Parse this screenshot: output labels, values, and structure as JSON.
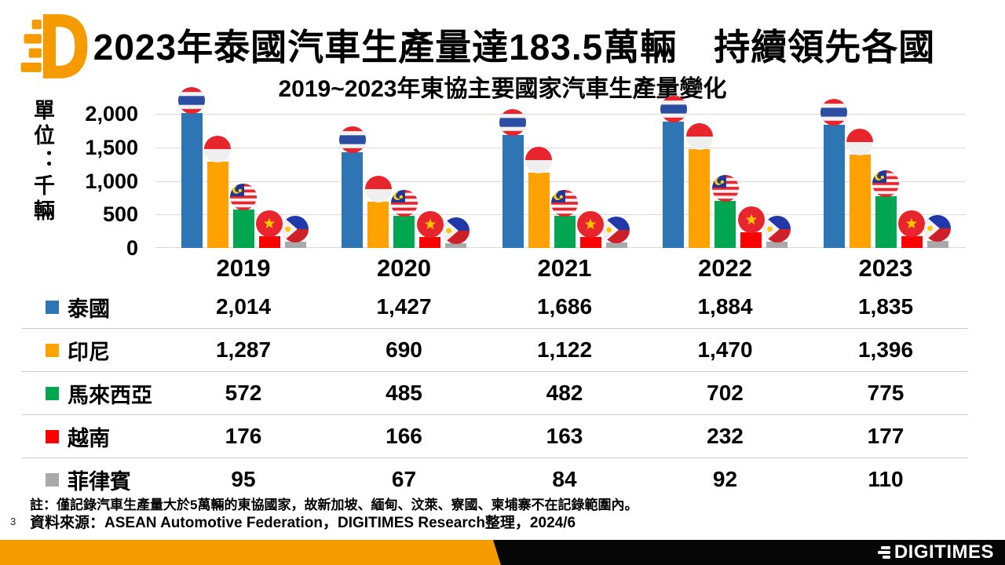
{
  "header": {
    "title": "2023年泰國汽車生產量達183.5萬輛　持續領先各國",
    "subtitle": "2019~2023年東協主要國家汽車生產量變化"
  },
  "chart_data": {
    "type": "bar",
    "title": "2019~2023年東協主要國家汽車生產量變化",
    "unit_label": "單位：千輛",
    "ylabel": "千輛",
    "ylim": [
      0,
      2000
    ],
    "y_ticks": [
      "2,000",
      "1,500",
      "1,000",
      "500",
      "0"
    ],
    "grid": true,
    "legend_position": "table-below-left",
    "categories": [
      "2019",
      "2020",
      "2021",
      "2022",
      "2023"
    ],
    "series": [
      {
        "name": "泰國",
        "flag": "thailand-flag",
        "color": "#2E75B6",
        "values": [
          2014,
          1427,
          1686,
          1884,
          1835
        ]
      },
      {
        "name": "印尼",
        "flag": "indonesia-flag",
        "color": "#FFA200",
        "values": [
          1287,
          690,
          1122,
          1470,
          1396
        ]
      },
      {
        "name": "馬來西亞",
        "flag": "malaysia-flag",
        "color": "#00A650",
        "values": [
          572,
          485,
          482,
          702,
          775
        ]
      },
      {
        "name": "越南",
        "flag": "vietnam-flag",
        "color": "#FF0000",
        "values": [
          176,
          166,
          163,
          232,
          177
        ]
      },
      {
        "name": "菲律賓",
        "flag": "philippines-flag",
        "color": "#A9A9A9",
        "values": [
          95,
          67,
          84,
          92,
          110
        ]
      }
    ]
  },
  "notes": {
    "note": "註：僅記錄汽車生產量大於5萬輛的東協國家，故新加坡、緬甸、汶萊、寮國、柬埔寨不在記錄範圍內。",
    "source": "資料來源：ASEAN Automotive Federation，DIGITIMES Research整理，2024/6",
    "page_number": "3"
  },
  "footer": {
    "brand": "DIGITIMES",
    "accent_color": "#F59B00",
    "bar_color": "#060606"
  }
}
